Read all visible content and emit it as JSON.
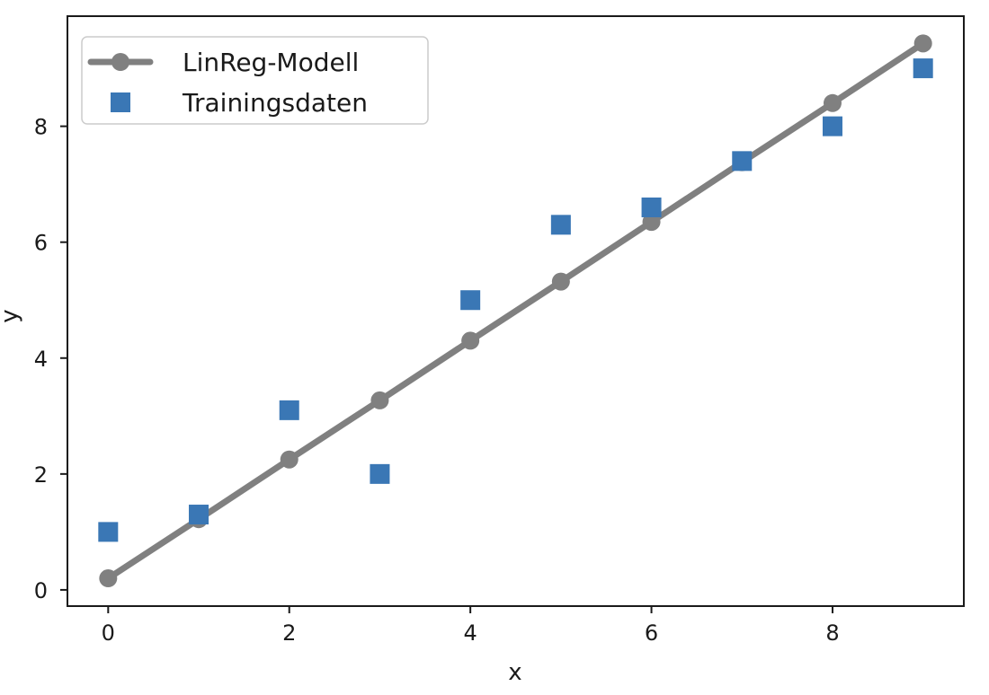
{
  "chart_data": {
    "type": "scatter",
    "xlabel": "x",
    "ylabel": "y",
    "xlim": [
      -0.45,
      9.45
    ],
    "ylim": [
      -0.28,
      9.9
    ],
    "xticks": [
      0,
      2,
      4,
      6,
      8
    ],
    "yticks": [
      0,
      2,
      4,
      6,
      8
    ],
    "grid": false,
    "legend_position": "upper-left",
    "series": [
      {
        "name": "LinReg-Modell",
        "kind": "line",
        "color": "#808080",
        "marker": "circle",
        "x": [
          0,
          1,
          2,
          3,
          4,
          5,
          6,
          7,
          8,
          9
        ],
        "y": [
          0.2,
          1.22,
          2.25,
          3.27,
          4.3,
          5.32,
          6.35,
          7.38,
          8.4,
          9.43
        ]
      },
      {
        "name": "Trainingsdaten",
        "kind": "scatter",
        "color": "#3a77b5",
        "marker": "square",
        "x": [
          0,
          1,
          2,
          3,
          4,
          5,
          6,
          7,
          8,
          9
        ],
        "y": [
          1.0,
          1.3,
          3.1,
          2.0,
          5.0,
          6.3,
          6.6,
          7.4,
          8.0,
          9.0
        ]
      }
    ]
  }
}
